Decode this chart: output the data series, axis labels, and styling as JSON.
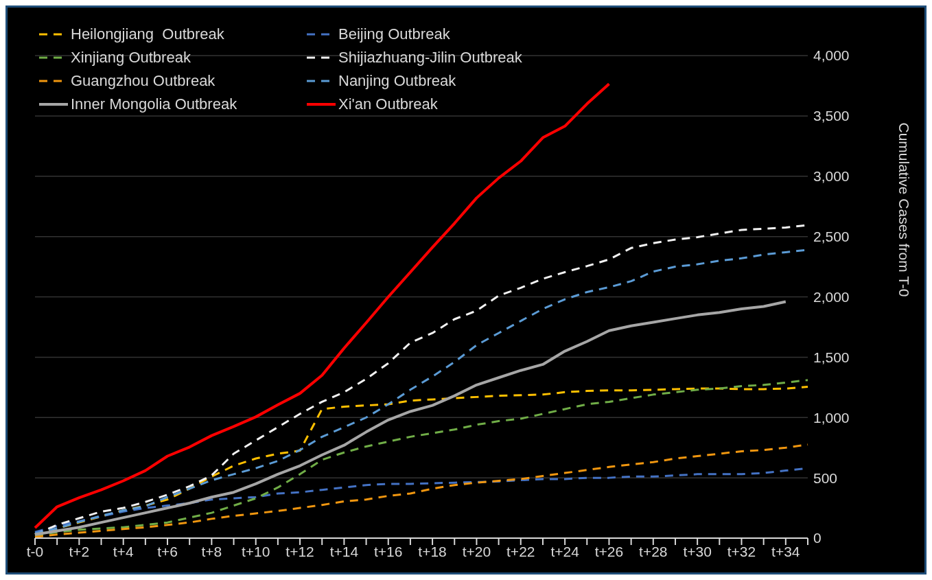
{
  "chart_data": {
    "type": "line",
    "y2label": "Cumulative Cases from T-0",
    "categories": [
      "t-0",
      null,
      "t+2",
      null,
      "t+4",
      null,
      "t+6",
      null,
      "t+8",
      null,
      "t+10",
      null,
      "t+12",
      null,
      "t+14",
      null,
      "t+16",
      null,
      "t+18",
      null,
      "t+20",
      null,
      "t+22",
      null,
      "t+24",
      null,
      "t+26",
      null,
      "t+28",
      null,
      "t+30",
      null,
      "t+32",
      null,
      "t+34",
      null
    ],
    "series": [
      {
        "name": "Heilongjiang  Outbreak",
        "color": "#ffc000",
        "line_style": "dashed",
        "axis": "y2",
        "values": [
          30,
          80,
          130,
          180,
          230,
          270,
          320,
          410,
          510,
          600,
          660,
          700,
          725,
          1070,
          1090,
          1100,
          1110,
          1140,
          1150,
          1160,
          1170,
          1180,
          1185,
          1190,
          1210,
          1220,
          1225,
          1225,
          1230,
          1235,
          1240,
          1240,
          1235,
          1235,
          1240,
          1255
        ]
      },
      {
        "name": "Beijing Outbreak",
        "color": "#4472c4",
        "line_style": "dashed",
        "axis": "y2",
        "values": [
          50,
          100,
          140,
          180,
          220,
          250,
          270,
          290,
          320,
          330,
          340,
          370,
          380,
          400,
          420,
          440,
          450,
          450,
          455,
          460,
          465,
          470,
          480,
          490,
          490,
          500,
          500,
          510,
          510,
          520,
          530,
          530,
          530,
          540,
          560,
          580
        ]
      },
      {
        "name": "Xinjiang Outbreak",
        "color": "#70ad47",
        "line_style": "dashed",
        "axis": "y2",
        "values": [
          20,
          50,
          70,
          80,
          90,
          110,
          130,
          170,
          210,
          270,
          330,
          420,
          530,
          650,
          710,
          760,
          800,
          840,
          870,
          900,
          940,
          970,
          990,
          1030,
          1070,
          1110,
          1130,
          1160,
          1190,
          1210,
          1230,
          1240,
          1260,
          1270,
          1290,
          1310
        ]
      },
      {
        "name": "Shijiazhuang-Jilin Outbreak",
        "color": "#f2f2f2",
        "line_style": "dashed",
        "axis": "y2",
        "values": [
          30,
          110,
          165,
          220,
          250,
          300,
          360,
          430,
          520,
          700,
          810,
          920,
          1030,
          1130,
          1210,
          1320,
          1450,
          1620,
          1700,
          1815,
          1885,
          2010,
          2075,
          2150,
          2205,
          2255,
          2310,
          2405,
          2445,
          2475,
          2495,
          2525,
          2555,
          2565,
          2575,
          2595
        ]
      },
      {
        "name": "Guangzhou Outbreak",
        "color": "#f0960f",
        "line_style": "dashed",
        "axis": "y2",
        "values": [
          10,
          30,
          45,
          60,
          75,
          90,
          110,
          130,
          160,
          185,
          205,
          225,
          250,
          275,
          305,
          320,
          350,
          370,
          410,
          440,
          460,
          475,
          490,
          515,
          540,
          565,
          590,
          610,
          630,
          660,
          680,
          700,
          720,
          730,
          750,
          775
        ]
      },
      {
        "name": "Nanjing Outbreak",
        "color": "#5b9bd5",
        "line_style": "dashed",
        "axis": "y2",
        "values": [
          40,
          80,
          135,
          185,
          230,
          265,
          340,
          410,
          480,
          530,
          580,
          640,
          730,
          840,
          920,
          1000,
          1110,
          1230,
          1340,
          1460,
          1600,
          1700,
          1800,
          1900,
          1980,
          2040,
          2080,
          2130,
          2210,
          2250,
          2270,
          2300,
          2320,
          2350,
          2370,
          2390
        ]
      },
      {
        "name": "Inner Mongolia Outbreak",
        "color": "#a6a6a6",
        "line_style": "solid",
        "axis": "y2",
        "values": [
          30,
          60,
          90,
          130,
          170,
          210,
          250,
          290,
          340,
          380,
          450,
          530,
          600,
          690,
          770,
          880,
          980,
          1050,
          1100,
          1180,
          1270,
          1330,
          1390,
          1440,
          1550,
          1630,
          1720,
          1760,
          1790,
          1820,
          1850,
          1870,
          1900,
          1920,
          1960,
          null
        ]
      },
      {
        "name": "Xi'an Outbreak",
        "color": "#ff0000",
        "line_style": "solid",
        "axis": "y2",
        "values": [
          85,
          260,
          335,
          400,
          475,
          560,
          680,
          755,
          850,
          925,
          1005,
          1105,
          1200,
          1350,
          1575,
          1785,
          2000,
          2205,
          2410,
          2610,
          2820,
          2985,
          3125,
          3320,
          3415,
          3600,
          3765,
          null,
          null,
          null,
          null,
          null,
          null,
          null,
          null,
          null
        ]
      }
    ],
    "y2lim": [
      0,
      4000
    ],
    "y2ticks": [
      {
        "value": 0,
        "label": "0"
      },
      {
        "value": 500,
        "label": "500"
      },
      {
        "value": 1000,
        "label": "1,000"
      },
      {
        "value": 1500,
        "label": "1,500"
      },
      {
        "value": 2000,
        "label": "2,000"
      },
      {
        "value": 2500,
        "label": "2,500"
      },
      {
        "value": 3000,
        "label": "3,000"
      },
      {
        "value": 3500,
        "label": "3,500"
      },
      {
        "value": 4000,
        "label": "4,000"
      }
    ],
    "grid": "y",
    "legend": "top left",
    "marker": "none"
  }
}
